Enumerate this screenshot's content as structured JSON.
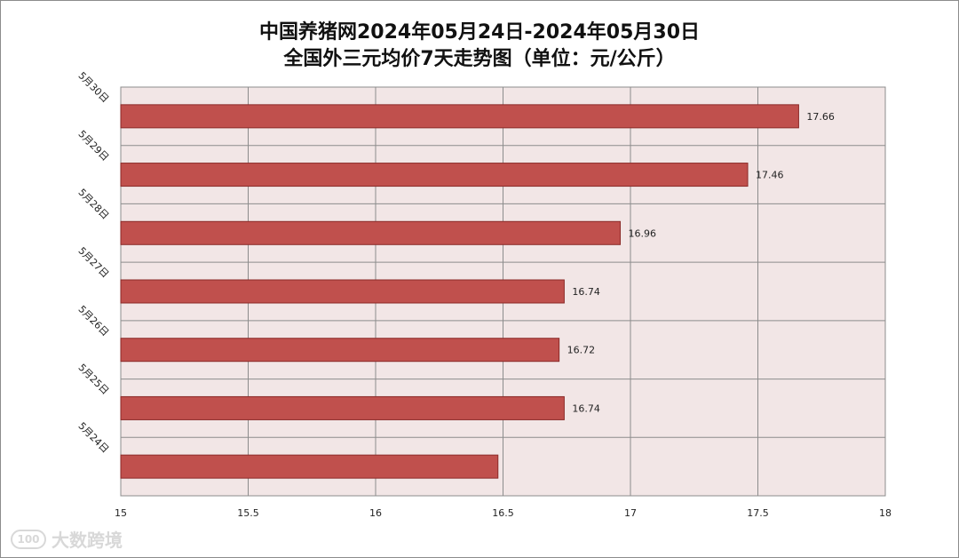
{
  "chart_data": {
    "type": "bar",
    "orientation": "horizontal",
    "title": "中国养猪网2024年05月24日-2024年05月30日",
    "subtitle": "全国外三元均价7天走势图（单位：元/公斤）",
    "categories": [
      "5月30日",
      "5月29日",
      "5月28日",
      "5月27日",
      "5月26日",
      "5月25日",
      "5月24日"
    ],
    "values": [
      17.66,
      17.46,
      16.96,
      16.74,
      16.72,
      16.74,
      16.48
    ],
    "data_labels": [
      "17.66",
      "17.46",
      "16.96",
      "16.74",
      "16.72",
      "16.74",
      ""
    ],
    "xlim": [
      15,
      18
    ],
    "x_ticks": [
      "15",
      "15.5",
      "16",
      "16.5",
      "17",
      "17.5",
      "18"
    ],
    "grid": true,
    "legend": "none",
    "colors": {
      "bar_fill": "#c0504d",
      "bar_stroke": "#8b2a28",
      "plot_background": "#f2e6e6",
      "grid": "#8c8c8c"
    }
  },
  "watermark": {
    "logo_text": "100",
    "text": "大数跨境"
  }
}
